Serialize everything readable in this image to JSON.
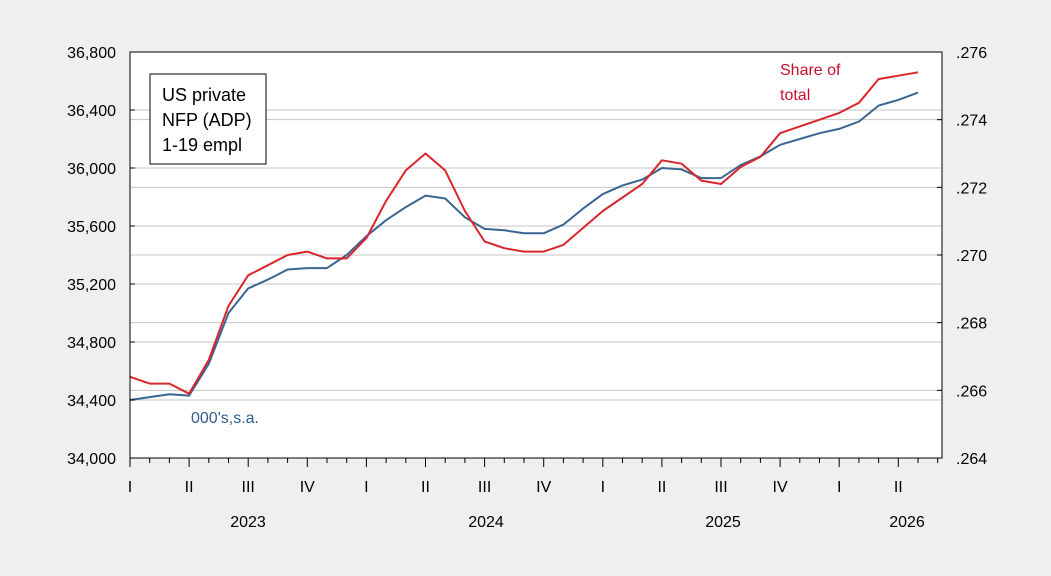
{
  "chart_data": {
    "type": "line",
    "annotations": {
      "box_lines": [
        "US private",
        "NFP (ADP)",
        "1-19 empl"
      ],
      "left_unit": "000's,s.a.",
      "right_label_lines": [
        "Share of",
        "total"
      ]
    },
    "x_quarter_labels": [
      "I",
      "II",
      "III",
      "IV",
      "I",
      "II",
      "III",
      "IV",
      "I",
      "II",
      "III",
      "IV",
      "I",
      "II"
    ],
    "x_year_labels": [
      "2023",
      "2024",
      "2025",
      "2026"
    ],
    "left_axis": {
      "ylim": [
        34000,
        36800
      ],
      "ticks": [
        34000,
        34400,
        34800,
        35200,
        35600,
        36000,
        36400,
        36800
      ],
      "tick_labels": [
        "34,000",
        "34,400",
        "34,800",
        "35,200",
        "35,600",
        "36,000",
        "36,400",
        "36,800"
      ]
    },
    "right_axis": {
      "ylim": [
        0.264,
        0.276
      ],
      "ticks": [
        0.264,
        0.266,
        0.268,
        0.27,
        0.272,
        0.274,
        0.276
      ],
      "tick_labels": [
        ".264",
        ".266",
        ".268",
        ".270",
        ".272",
        ".274",
        ".276"
      ]
    },
    "x_start": "2023-01",
    "series": [
      {
        "axis": "left",
        "color": "#3b6591",
        "values": [
          34400,
          34420,
          34440,
          34430,
          34650,
          35000,
          35170,
          35230,
          35300,
          35310,
          35310,
          35400,
          35530,
          35640,
          35730,
          35810,
          35790,
          35660,
          35580,
          35570,
          35550,
          35550,
          35610,
          35720,
          35820,
          35880,
          35920,
          36000,
          35990,
          35930,
          35930,
          36020,
          36080,
          36160,
          36200,
          36240,
          36270,
          36320,
          36430,
          36470,
          36520
        ]
      },
      {
        "axis": "right",
        "color": "#d9262c",
        "values": [
          0.2664,
          0.2662,
          0.2662,
          0.2659,
          0.2669,
          0.2685,
          0.2694,
          0.2697,
          0.27,
          0.2701,
          0.2699,
          0.2699,
          0.2705,
          0.2716,
          0.2725,
          0.273,
          0.2725,
          0.2713,
          0.2704,
          0.2702,
          0.2701,
          0.2701,
          0.2703,
          0.2708,
          0.2713,
          0.2717,
          0.2721,
          0.2728,
          0.2727,
          0.2722,
          0.2721,
          0.2726,
          0.2729,
          0.2736,
          0.2738,
          0.274,
          0.2742,
          0.2745,
          0.2752,
          0.2753,
          0.2754
        ]
      }
    ]
  }
}
